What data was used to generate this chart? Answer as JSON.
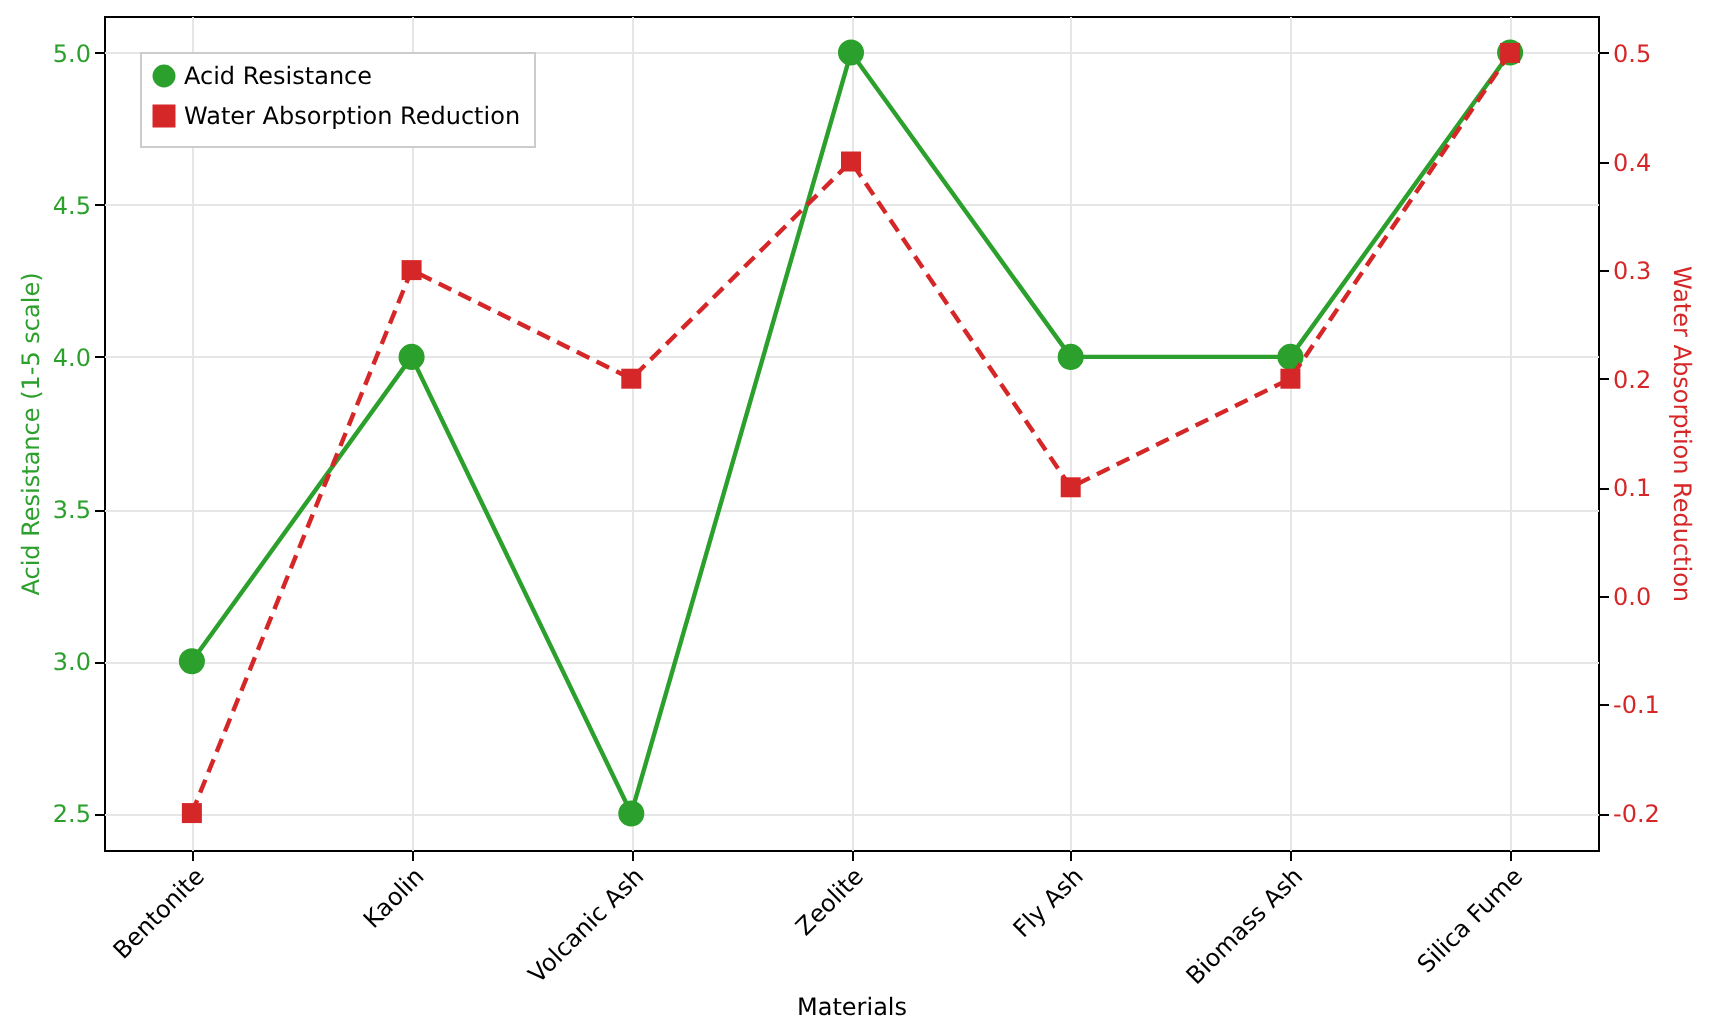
{
  "chart_data": {
    "type": "line",
    "xlabel": "Materials",
    "ylabel": "Acid Resistance (1-5 scale)",
    "y2label": "Water Absorption Reduction",
    "categories": [
      "Bentonite",
      "Kaolin",
      "Volcanic Ash",
      "Zeolite",
      "Fly Ash",
      "Biomass Ash",
      "Silica Fume"
    ],
    "series": [
      {
        "name": "Acid Resistance",
        "color": "#2ca02c",
        "values": [
          3.0,
          4.0,
          2.5,
          5.0,
          4.0,
          4.0,
          5.0
        ],
        "marker": "circle",
        "line_style": "solid"
      },
      {
        "name": "Water Absorption Reduction",
        "color": "#d62728",
        "values": [
          -0.2,
          0.3,
          0.2,
          0.4,
          0.1,
          0.2,
          0.5
        ],
        "marker": "square",
        "line_style": "dashed",
        "axis": "y2"
      }
    ],
    "ylim": [
      2.38,
      5.12
    ],
    "yticks": [
      2.5,
      {
        "value": 3,
        "label": "3.0"
      },
      3.5,
      {
        "value": 4,
        "label": "4.0"
      },
      4.5,
      {
        "value": 5,
        "label": "5.0"
      }
    ],
    "y2lim": [
      -0.234,
      0.534
    ],
    "y2ticks": [
      -0.2,
      -0.1,
      {
        "value": 0,
        "label": "0.0"
      },
      0.1,
      0.2,
      0.3,
      0.4,
      0.5
    ],
    "grid": true,
    "legend": "top left"
  }
}
